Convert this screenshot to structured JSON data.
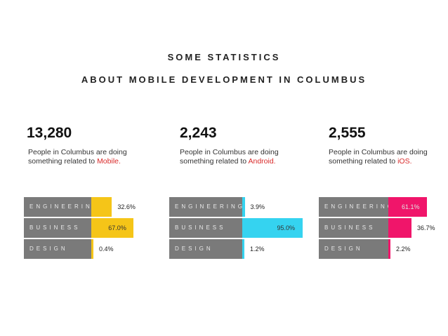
{
  "header": {
    "line1": "SOME STATISTICS",
    "line2": "ABOUT MOBILE DEVELOPMENT IN COLUMBUS"
  },
  "chart_data": [
    {
      "type": "bar",
      "headline": "13,280",
      "description": "People in Columbus are doing something related to ",
      "highlight": "Mobile.",
      "categories": [
        "ENGINEERING",
        "BUSINESS",
        "DESIGN"
      ],
      "values": [
        32.6,
        67.0,
        0.4
      ],
      "value_labels": [
        "32.6%",
        "67.0%",
        "0.4%"
      ],
      "color": "#f5c518",
      "xlim": [
        0,
        100
      ]
    },
    {
      "type": "bar",
      "headline": "2,243",
      "description": "People in Columbus are doing something related to ",
      "highlight": "Android.",
      "categories": [
        "ENGINEERING",
        "BUSINESS",
        "DESIGN"
      ],
      "values": [
        3.9,
        95.0,
        1.2
      ],
      "value_labels": [
        "3.9%",
        "95.0%",
        "1.2%"
      ],
      "color": "#35d3f0",
      "xlim": [
        0,
        100
      ]
    },
    {
      "type": "bar",
      "headline": "2,555",
      "description": "People in Columbus are doing something related to ",
      "highlight": "iOS.",
      "categories": [
        "ENGINEERING",
        "BUSINESS",
        "DESIGN"
      ],
      "values": [
        61.1,
        36.7,
        2.2
      ],
      "value_labels": [
        "61.1%",
        "36.7%",
        "2.2%"
      ],
      "color": "#f0156a",
      "xlim": [
        0,
        100
      ]
    }
  ]
}
